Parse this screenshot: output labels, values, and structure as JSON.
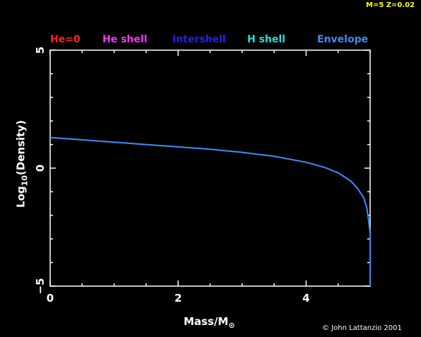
{
  "header": {
    "params": "M=5 Z=0.02"
  },
  "footer": {
    "credit": "© John Lattanzio 2001"
  },
  "legend": [
    {
      "label": "He=0",
      "color": "#ff2020"
    },
    {
      "label": "He shell",
      "color": "#ff30ff"
    },
    {
      "label": "Intershell",
      "color": "#2020ff"
    },
    {
      "label": "H shell",
      "color": "#20e0e0"
    },
    {
      "label": "Envelope",
      "color": "#3c8cff"
    }
  ],
  "axes": {
    "xlabel_main": "Mass/M",
    "xlabel_sub": "⊙",
    "ylabel_main": "Log",
    "ylabel_sub": "10",
    "ylabel_rest": "(Density)"
  },
  "chart_data": {
    "type": "line",
    "xlim": [
      0,
      5
    ],
    "ylim": [
      -5,
      5
    ],
    "x_ticks": [
      0,
      2,
      4
    ],
    "y_ticks": [
      -5,
      0,
      5
    ],
    "x_ticklabels": [
      "0",
      "2",
      "4"
    ],
    "y_ticklabels": [
      "−5",
      "0",
      "5"
    ],
    "grid": false,
    "legend_placement": "top",
    "series": [
      {
        "name": "Envelope",
        "color": "#3c8cff",
        "x": [
          0,
          0.5,
          1.0,
          1.5,
          2.0,
          2.5,
          3.0,
          3.5,
          4.0,
          4.3,
          4.5,
          4.7,
          4.8,
          4.9,
          4.95,
          4.98,
          5.0,
          5.0
        ],
        "y": [
          1.3,
          1.2,
          1.1,
          1.0,
          0.9,
          0.8,
          0.67,
          0.5,
          0.25,
          0.02,
          -0.2,
          -0.55,
          -0.85,
          -1.25,
          -1.7,
          -2.3,
          -2.8,
          -5.0
        ]
      }
    ]
  }
}
